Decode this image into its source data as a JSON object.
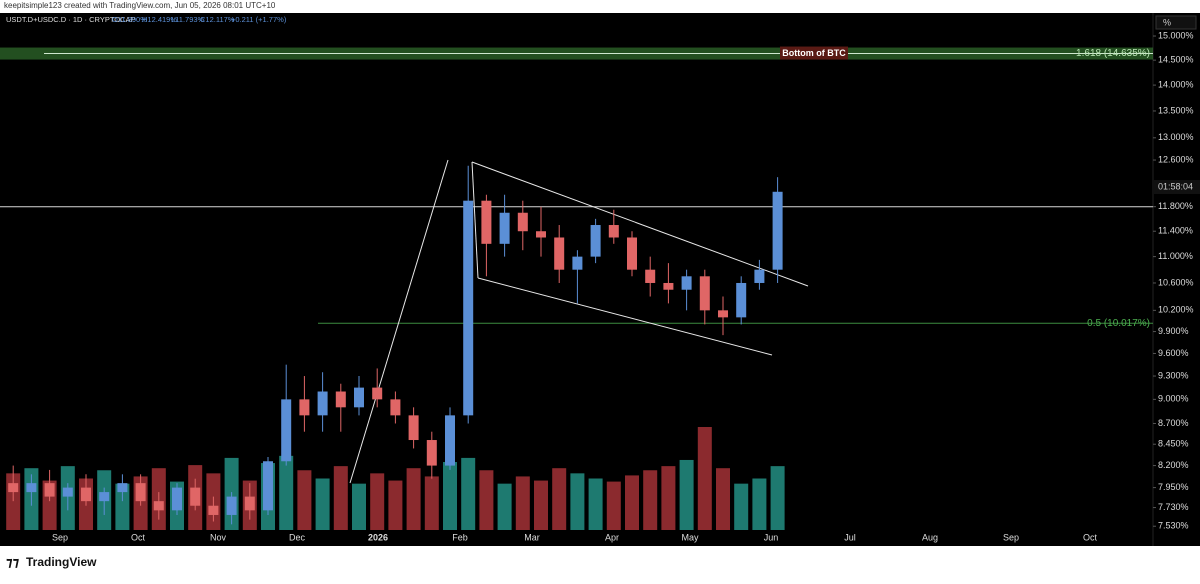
{
  "header": {
    "credit": "keepitsimple123 created with TradingView.com, Jun 05, 2026 08:01 UTC+10",
    "symbol": "USDT.D+USDC.D · 1D · CRYPTOCAP",
    "open": "O11.890%",
    "high": "H12.419%",
    "low": "L11.793%",
    "close": "C12.117%",
    "change": "+0.211 (+1.77%)",
    "scale_button": "%",
    "countdown": "01:58:04",
    "brand": "TradingView"
  },
  "chart_data": {
    "type": "candlestick",
    "log_scale": true,
    "ylim": [
      7.49,
      15.45
    ],
    "yticks": [
      {
        "value": 15,
        "label": "15.000%"
      },
      {
        "value": 14.5,
        "label": "14.500%"
      },
      {
        "value": 14,
        "label": "14.000%"
      },
      {
        "value": 13.5,
        "label": "13.500%"
      },
      {
        "value": 13,
        "label": "13.000%"
      },
      {
        "value": 12.6,
        "label": "12.600%"
      },
      {
        "value": 11.8,
        "label": "11.800%"
      },
      {
        "value": 11.4,
        "label": "11.400%"
      },
      {
        "value": 11,
        "label": "11.000%"
      },
      {
        "value": 10.6,
        "label": "10.600%"
      },
      {
        "value": 10.2,
        "label": "10.200%"
      },
      {
        "value": 9.9,
        "label": "9.900%"
      },
      {
        "value": 9.6,
        "label": "9.600%"
      },
      {
        "value": 9.3,
        "label": "9.300%"
      },
      {
        "value": 9,
        "label": "9.000%"
      },
      {
        "value": 8.7,
        "label": "8.700%"
      },
      {
        "value": 8.45,
        "label": "8.450%"
      },
      {
        "value": 8.2,
        "label": "8.200%"
      },
      {
        "value": 7.95,
        "label": "7.950%"
      },
      {
        "value": 7.73,
        "label": "7.730%"
      },
      {
        "value": 7.53,
        "label": "7.530%"
      }
    ],
    "month_labels": [
      "Sep",
      "Oct",
      "Nov",
      "Dec",
      "2026",
      "Feb",
      "Mar",
      "Apr",
      "May",
      "Jun",
      "Jul",
      "Aug",
      "Sep",
      "Oct"
    ],
    "up_color": "#5b8fd6",
    "down_color": "#e06666",
    "open": [
      8.0,
      7.9,
      8.0,
      7.85,
      7.95,
      7.8,
      7.9,
      8.0,
      7.8,
      7.7,
      7.95,
      7.75,
      7.65,
      7.85,
      7.7,
      8.25,
      9.0,
      8.8,
      9.1,
      8.9,
      9.15,
      9.0,
      8.8,
      8.5,
      8.2,
      8.8,
      11.9,
      11.2,
      11.7,
      11.4,
      11.3,
      10.8,
      11.0,
      11.5,
      11.3,
      10.8,
      10.6,
      10.5,
      10.7,
      10.2,
      10.1,
      10.6,
      10.8
    ],
    "high": [
      8.2,
      8.1,
      8.15,
      8.0,
      8.1,
      7.95,
      8.1,
      8.1,
      7.9,
      8.0,
      8.05,
      7.85,
      7.9,
      8.0,
      8.3,
      9.45,
      9.3,
      9.35,
      9.2,
      9.3,
      9.4,
      9.1,
      8.9,
      8.6,
      8.9,
      12.5,
      12.0,
      12.0,
      11.9,
      11.8,
      11.5,
      11.1,
      11.6,
      11.75,
      11.4,
      11.0,
      10.9,
      10.8,
      10.8,
      10.4,
      10.7,
      10.95,
      12.3
    ],
    "low": [
      7.8,
      7.75,
      7.8,
      7.7,
      7.75,
      7.65,
      7.8,
      7.75,
      7.6,
      7.65,
      7.7,
      7.58,
      7.55,
      7.6,
      7.65,
      8.2,
      8.6,
      8.6,
      8.6,
      8.8,
      8.9,
      8.7,
      8.4,
      8.05,
      8.15,
      8.7,
      10.7,
      11.0,
      11.1,
      11.0,
      10.6,
      10.3,
      10.9,
      11.2,
      10.7,
      10.4,
      10.3,
      10.2,
      10.0,
      9.85,
      10.0,
      10.5,
      10.6
    ],
    "close": [
      7.9,
      8.0,
      7.85,
      7.95,
      7.8,
      7.9,
      8.0,
      7.8,
      7.7,
      7.95,
      7.75,
      7.65,
      7.85,
      7.7,
      8.25,
      9.0,
      8.8,
      9.1,
      8.9,
      9.15,
      9.0,
      8.8,
      8.5,
      8.2,
      8.8,
      11.9,
      11.2,
      11.7,
      11.4,
      11.3,
      10.8,
      11.0,
      11.5,
      11.3,
      10.8,
      10.6,
      10.5,
      10.7,
      10.2,
      10.1,
      10.6,
      10.8,
      12.05
    ],
    "volume": [
      55,
      60,
      48,
      62,
      50,
      58,
      45,
      52,
      60,
      47,
      63,
      55,
      70,
      48,
      65,
      72,
      58,
      50,
      62,
      45,
      55,
      48,
      60,
      52,
      66,
      70,
      58,
      45,
      52,
      48,
      60,
      55,
      50,
      47,
      53,
      58,
      62,
      68,
      100,
      60,
      45,
      50,
      62
    ],
    "levels": [
      {
        "value": 14.635,
        "label": "1.618 (14.635%)",
        "note": "Bottom of BTC",
        "color": "#3f8f3a"
      },
      {
        "value": 11.8,
        "color": "#d8d8d8"
      },
      {
        "value": 10.017,
        "label": "0.5 (10.017%)",
        "color": "#4caf50"
      }
    ]
  }
}
